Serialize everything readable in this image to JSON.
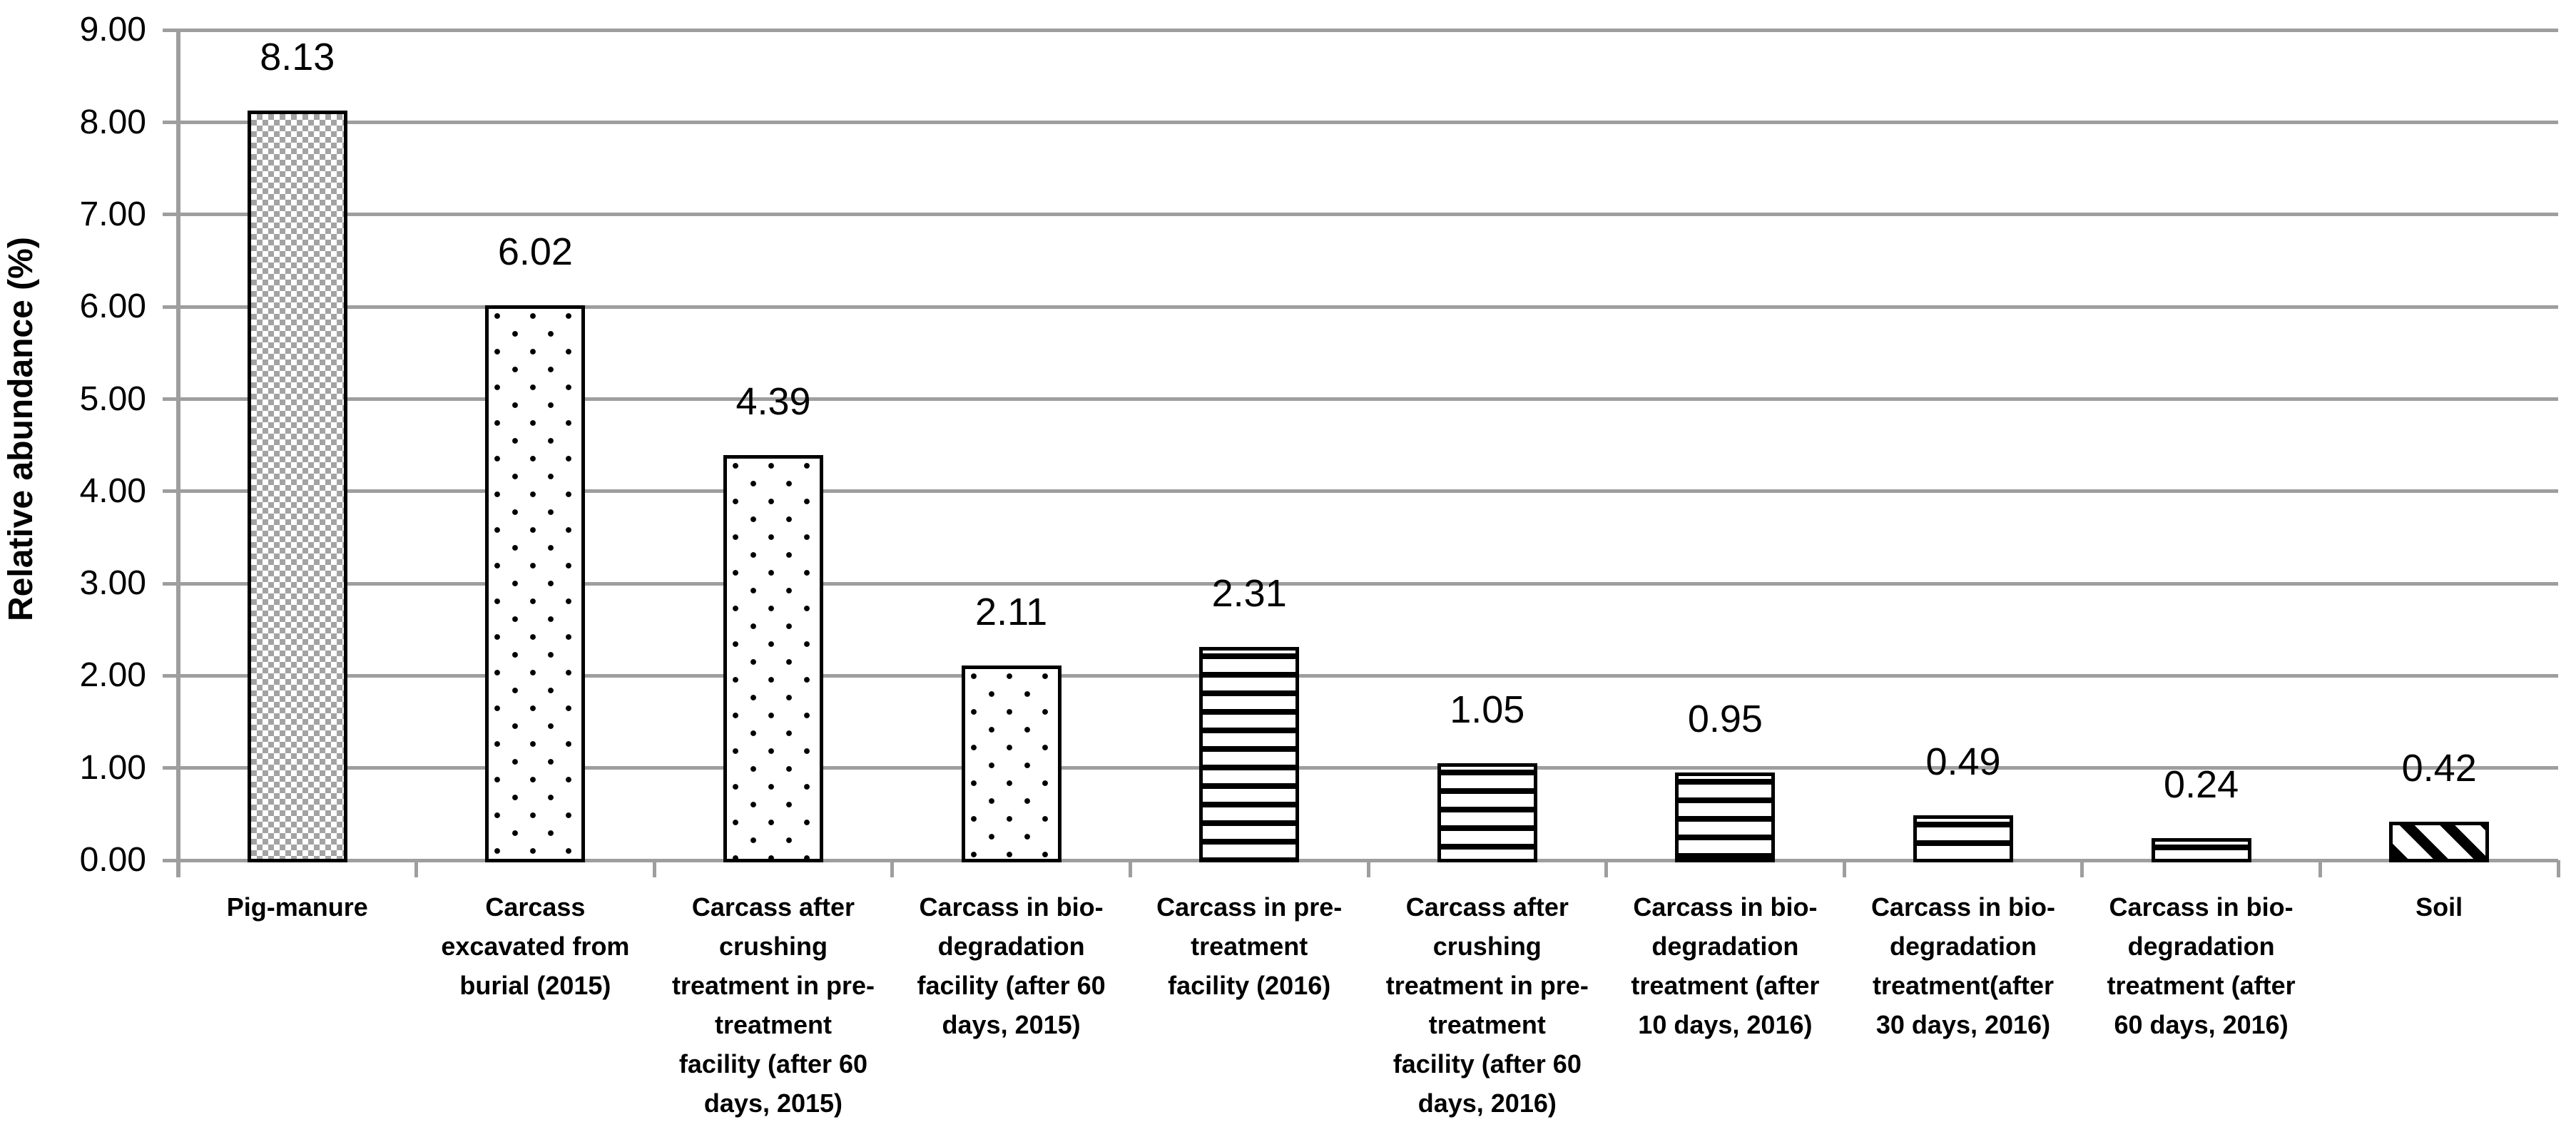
{
  "colors": {
    "gridline": "#9E9E9E",
    "text": "#000000",
    "bar_border": "#000000",
    "checker_gray": "#A3A3A3",
    "background": "#FFFFFF"
  },
  "chart_data": {
    "type": "bar",
    "title": "",
    "xlabel": "",
    "ylabel": "Relative abundance (%)",
    "ylim": [
      0,
      9
    ],
    "ytick_step": 1,
    "ytick_labels": [
      "0.00",
      "1.00",
      "2.00",
      "3.00",
      "4.00",
      "5.00",
      "6.00",
      "7.00",
      "8.00",
      "9.00"
    ],
    "grid": "horizontal",
    "legend_position": "none",
    "categories": [
      "Pig-manure",
      "Carcass\nexcavated from\nburial (2015)",
      "Carcass after\ncrushing\ntreatment in pre-\ntreatment\nfacility (after 60\ndays, 2015)",
      "Carcass in bio-\ndegradation\nfacility (after 60\ndays, 2015)",
      "Carcass in pre-\ntreatment\nfacility (2016)",
      "Carcass after\ncrushing\ntreatment in pre-\ntreatment\nfacility (after 60\ndays, 2016)",
      "Carcass in bio-\ndegradation\ntreatment (after\n10 days, 2016)",
      "Carcass in bio-\ndegradation\ntreatment(after\n30 days, 2016)",
      "Carcass in bio-\ndegradation\ntreatment (after\n60 days, 2016)",
      "Soil"
    ],
    "values": [
      8.13,
      6.02,
      4.39,
      2.11,
      2.31,
      1.05,
      0.95,
      0.49,
      0.24,
      0.42
    ],
    "value_labels": [
      "8.13",
      "6.02",
      "4.39",
      "2.11",
      "2.31",
      "1.05",
      "0.95",
      "0.49",
      "0.24",
      "0.42"
    ],
    "bar_patterns": [
      "checker",
      "dots",
      "dots",
      "dots",
      "hlines",
      "hlines",
      "hlines",
      "hlines",
      "hlines",
      "diagonal"
    ]
  }
}
